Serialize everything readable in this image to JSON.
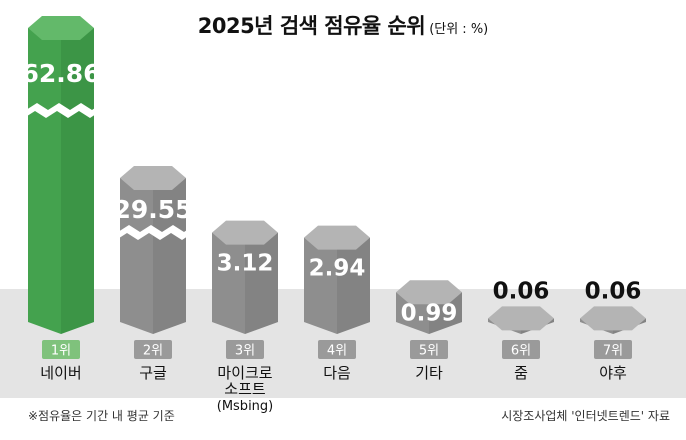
{
  "title": {
    "main": "2025년 검색 점유율 순위",
    "unit": "(단위 : %)"
  },
  "footnote": {
    "left": "※점유율은 기간 내 평균 기준",
    "right": "시장조사업체 '인터넷트렌드' 자료"
  },
  "colors": {
    "highlight": "#44a24e",
    "highlight_dark": "#2f7d39",
    "bar": "#8e8e8e",
    "bar_top": "#b4b4b4",
    "background_band": "#e4e4e4",
    "rank_green": "#7fc27c",
    "rank_gray": "#9a9a9a"
  },
  "chart_data": {
    "type": "bar",
    "title": "2025년 검색 점유율 순위",
    "unit": "(단위 : %)",
    "categories": [
      "네이버",
      "구글",
      "마이크로 소프트 (Msbing)",
      "다음",
      "기타",
      "줌",
      "야후"
    ],
    "category_lines": [
      [
        "네이버"
      ],
      [
        "구글"
      ],
      [
        "마이크로",
        "소프트",
        "(Msbing)"
      ],
      [
        "다음"
      ],
      [
        "기타"
      ],
      [
        "줌"
      ],
      [
        "야후"
      ]
    ],
    "ranks": [
      "1위",
      "2위",
      "3위",
      "4위",
      "5위",
      "6위",
      "7위"
    ],
    "values": [
      62.86,
      29.55,
      3.12,
      2.94,
      0.99,
      0.06,
      0.06
    ],
    "value_labels": [
      "62.86",
      "29.55",
      "3.12",
      "2.94",
      "0.99",
      "0.06",
      "0.06"
    ],
    "broken_axis": [
      true,
      true,
      false,
      false,
      false,
      false,
      false
    ],
    "highlight_index": 0
  }
}
